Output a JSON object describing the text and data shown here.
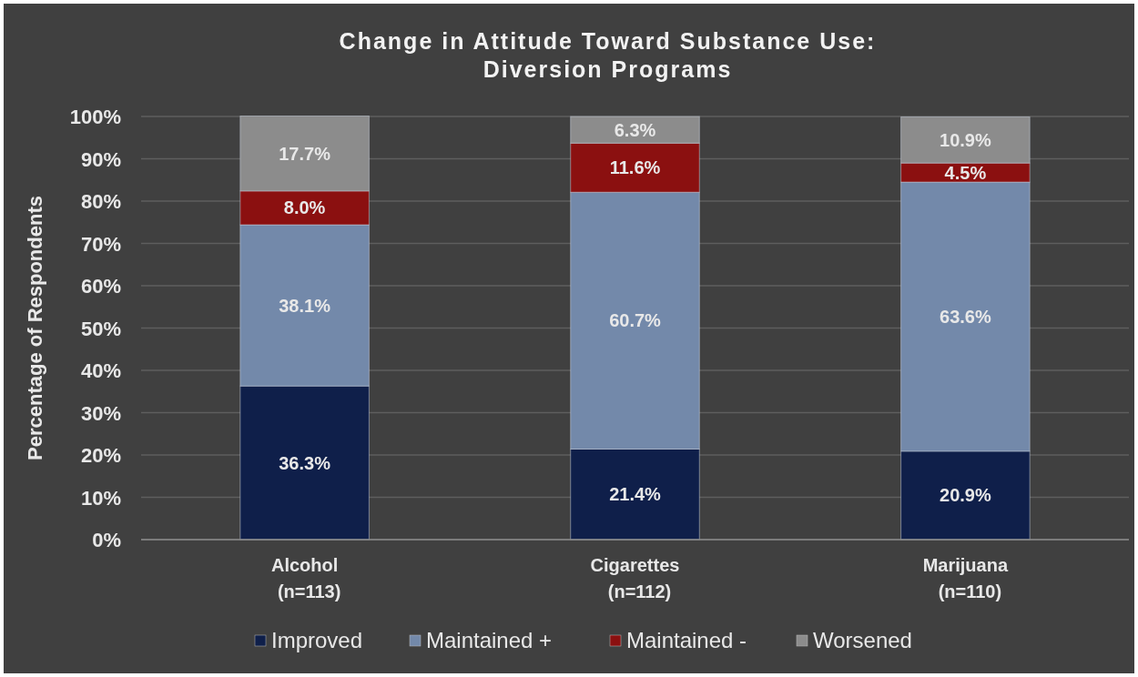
{
  "chart_data": {
    "type": "bar",
    "stacked": true,
    "title": "Change in Attitude Toward Substance Use:\nDiversion Programs",
    "ylabel": "Percentage of Respondents",
    "categories": [
      "Alcohol\n(n=113)",
      "Cigarettes\n(n=112)",
      "Marijuana\n(n=110)"
    ],
    "series": [
      {
        "name": "Improved",
        "color": "#0f1f4a",
        "values": [
          36.3,
          21.4,
          20.9
        ],
        "value_labels": [
          "36.3%",
          "21.4%",
          "20.9%"
        ]
      },
      {
        "name": "Maintained +",
        "color": "#7389aa",
        "values": [
          38.1,
          60.7,
          63.6
        ],
        "value_labels": [
          "38.1%",
          "60.7%",
          "63.6%"
        ]
      },
      {
        "name": "Maintained -",
        "color": "#8b1010",
        "values": [
          8.0,
          11.6,
          4.5
        ],
        "value_labels": [
          "8.0%",
          "11.6%",
          "4.5%"
        ]
      },
      {
        "name": "Worsened",
        "color": "#8c8c8c",
        "values": [
          17.7,
          6.3,
          10.9
        ],
        "value_labels": [
          "17.7%",
          "6.3%",
          "10.9%"
        ]
      }
    ],
    "ylim": [
      0,
      100
    ],
    "yticks": [
      {
        "value": 0,
        "label": "0%"
      },
      {
        "value": 10,
        "label": "10%"
      },
      {
        "value": 20,
        "label": "20%"
      },
      {
        "value": 30,
        "label": "30%"
      },
      {
        "value": 40,
        "label": "40%"
      },
      {
        "value": 50,
        "label": "50%"
      },
      {
        "value": 60,
        "label": "60%"
      },
      {
        "value": 70,
        "label": "70%"
      },
      {
        "value": 80,
        "label": "80%"
      },
      {
        "value": 90,
        "label": "90%"
      },
      {
        "value": 100,
        "label": "100%"
      }
    ],
    "grid": "y",
    "legend": "bottom"
  }
}
